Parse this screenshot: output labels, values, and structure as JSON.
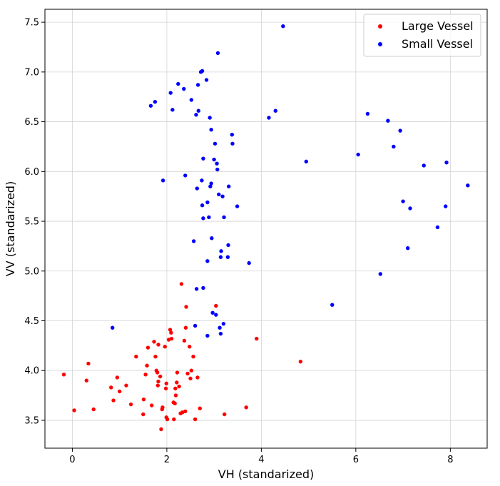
{
  "chart_data": {
    "type": "scatter",
    "title": "",
    "xlabel": "VH (standarized)",
    "ylabel": "VV (standarized)",
    "xlim": [
      -0.58,
      8.78
    ],
    "ylim": [
      3.22,
      7.63
    ],
    "xticks": [
      0,
      2,
      4,
      6,
      8
    ],
    "yticks": [
      3.5,
      4.0,
      4.5,
      5.0,
      5.5,
      6.0,
      6.5,
      7.0,
      7.5
    ],
    "ytick_labels": [
      "3.5",
      "4.0",
      "4.5",
      "5.0",
      "5.5",
      "6.0",
      "6.5",
      "7.0",
      "7.5"
    ],
    "grid": true,
    "legend_position": "top-right",
    "series": [
      {
        "name": "Large Vessel",
        "color": "#ff0000",
        "points": [
          [
            -0.18,
            3.96
          ],
          [
            0.04,
            3.6
          ],
          [
            0.3,
            3.9
          ],
          [
            0.34,
            4.07
          ],
          [
            0.45,
            3.61
          ],
          [
            0.82,
            3.83
          ],
          [
            0.87,
            3.7
          ],
          [
            0.95,
            3.93
          ],
          [
            1.0,
            3.79
          ],
          [
            1.14,
            3.85
          ],
          [
            1.24,
            3.66
          ],
          [
            1.35,
            4.14
          ],
          [
            1.5,
            3.56
          ],
          [
            1.51,
            3.71
          ],
          [
            1.55,
            3.96
          ],
          [
            1.58,
            4.05
          ],
          [
            1.6,
            4.23
          ],
          [
            1.68,
            3.65
          ],
          [
            1.73,
            4.29
          ],
          [
            1.76,
            4.14
          ],
          [
            1.78,
            4.0
          ],
          [
            1.8,
            3.98
          ],
          [
            1.81,
            3.85
          ],
          [
            1.82,
            4.26
          ],
          [
            1.82,
            3.89
          ],
          [
            1.86,
            3.94
          ],
          [
            1.88,
            3.41
          ],
          [
            1.9,
            3.61
          ],
          [
            1.91,
            3.63
          ],
          [
            1.96,
            4.24
          ],
          [
            1.98,
            3.82
          ],
          [
            1.99,
            3.87
          ],
          [
            1.99,
            3.53
          ],
          [
            2.01,
            3.51
          ],
          [
            2.04,
            4.31
          ],
          [
            2.07,
            4.41
          ],
          [
            2.09,
            4.38
          ],
          [
            2.1,
            4.32
          ],
          [
            2.14,
            3.68
          ],
          [
            2.15,
            3.51
          ],
          [
            2.17,
            3.67
          ],
          [
            2.18,
            3.82
          ],
          [
            2.19,
            3.75
          ],
          [
            2.21,
            3.88
          ],
          [
            2.22,
            3.98
          ],
          [
            2.26,
            3.84
          ],
          [
            2.29,
            3.57
          ],
          [
            2.31,
            4.87
          ],
          [
            2.33,
            3.58
          ],
          [
            2.37,
            4.3
          ],
          [
            2.39,
            3.59
          ],
          [
            2.4,
            4.43
          ],
          [
            2.41,
            4.64
          ],
          [
            2.44,
            3.97
          ],
          [
            2.48,
            4.24
          ],
          [
            2.5,
            3.92
          ],
          [
            2.52,
            4.0
          ],
          [
            2.56,
            4.14
          ],
          [
            2.6,
            3.51
          ],
          [
            2.65,
            3.93
          ],
          [
            2.7,
            3.62
          ],
          [
            3.04,
            4.65
          ],
          [
            3.22,
            3.56
          ],
          [
            3.68,
            3.63
          ],
          [
            3.9,
            4.32
          ],
          [
            4.83,
            4.09
          ]
        ]
      },
      {
        "name": "Small Vessel",
        "color": "#0000ff",
        "points": [
          [
            0.85,
            4.43
          ],
          [
            1.66,
            6.66
          ],
          [
            1.75,
            6.7
          ],
          [
            1.92,
            5.91
          ],
          [
            2.08,
            6.79
          ],
          [
            2.12,
            6.62
          ],
          [
            2.24,
            6.88
          ],
          [
            2.36,
            6.83
          ],
          [
            2.39,
            5.96
          ],
          [
            2.52,
            6.72
          ],
          [
            2.57,
            5.3
          ],
          [
            2.6,
            4.45
          ],
          [
            2.62,
            6.57
          ],
          [
            2.63,
            4.82
          ],
          [
            2.64,
            5.83
          ],
          [
            2.66,
            6.87
          ],
          [
            2.67,
            6.61
          ],
          [
            2.72,
            7.0
          ],
          [
            2.74,
            5.91
          ],
          [
            2.75,
            7.01
          ],
          [
            2.75,
            5.66
          ],
          [
            2.77,
            5.53
          ],
          [
            2.77,
            6.13
          ],
          [
            2.77,
            4.83
          ],
          [
            2.84,
            6.92
          ],
          [
            2.86,
            5.69
          ],
          [
            2.86,
            5.1
          ],
          [
            2.86,
            4.35
          ],
          [
            2.89,
            5.54
          ],
          [
            2.91,
            6.54
          ],
          [
            2.92,
            5.85
          ],
          [
            2.94,
            5.88
          ],
          [
            2.94,
            6.42
          ],
          [
            2.95,
            5.33
          ],
          [
            2.97,
            4.58
          ],
          [
            3.0,
            6.12
          ],
          [
            3.02,
            6.28
          ],
          [
            3.04,
            4.56
          ],
          [
            3.06,
            6.08
          ],
          [
            3.07,
            6.02
          ],
          [
            3.08,
            7.19
          ],
          [
            3.1,
            5.77
          ],
          [
            3.12,
            4.43
          ],
          [
            3.14,
            5.14
          ],
          [
            3.14,
            4.37
          ],
          [
            3.15,
            5.2
          ],
          [
            3.18,
            5.75
          ],
          [
            3.2,
            4.47
          ],
          [
            3.21,
            5.54
          ],
          [
            3.29,
            5.14
          ],
          [
            3.3,
            5.26
          ],
          [
            3.31,
            5.85
          ],
          [
            3.38,
            6.37
          ],
          [
            3.39,
            6.28
          ],
          [
            3.49,
            5.65
          ],
          [
            3.74,
            5.08
          ],
          [
            4.16,
            6.54
          ],
          [
            4.3,
            6.61
          ],
          [
            4.46,
            7.46
          ],
          [
            4.95,
            6.1
          ],
          [
            5.5,
            4.66
          ],
          [
            6.05,
            6.17
          ],
          [
            6.25,
            6.58
          ],
          [
            6.52,
            4.97
          ],
          [
            6.68,
            6.51
          ],
          [
            6.8,
            6.25
          ],
          [
            6.94,
            6.41
          ],
          [
            7.0,
            5.7
          ],
          [
            7.1,
            5.23
          ],
          [
            7.15,
            5.63
          ],
          [
            7.44,
            6.06
          ],
          [
            7.73,
            5.44
          ],
          [
            7.9,
            5.65
          ],
          [
            7.92,
            6.09
          ],
          [
            8.37,
            5.86
          ]
        ]
      }
    ]
  }
}
